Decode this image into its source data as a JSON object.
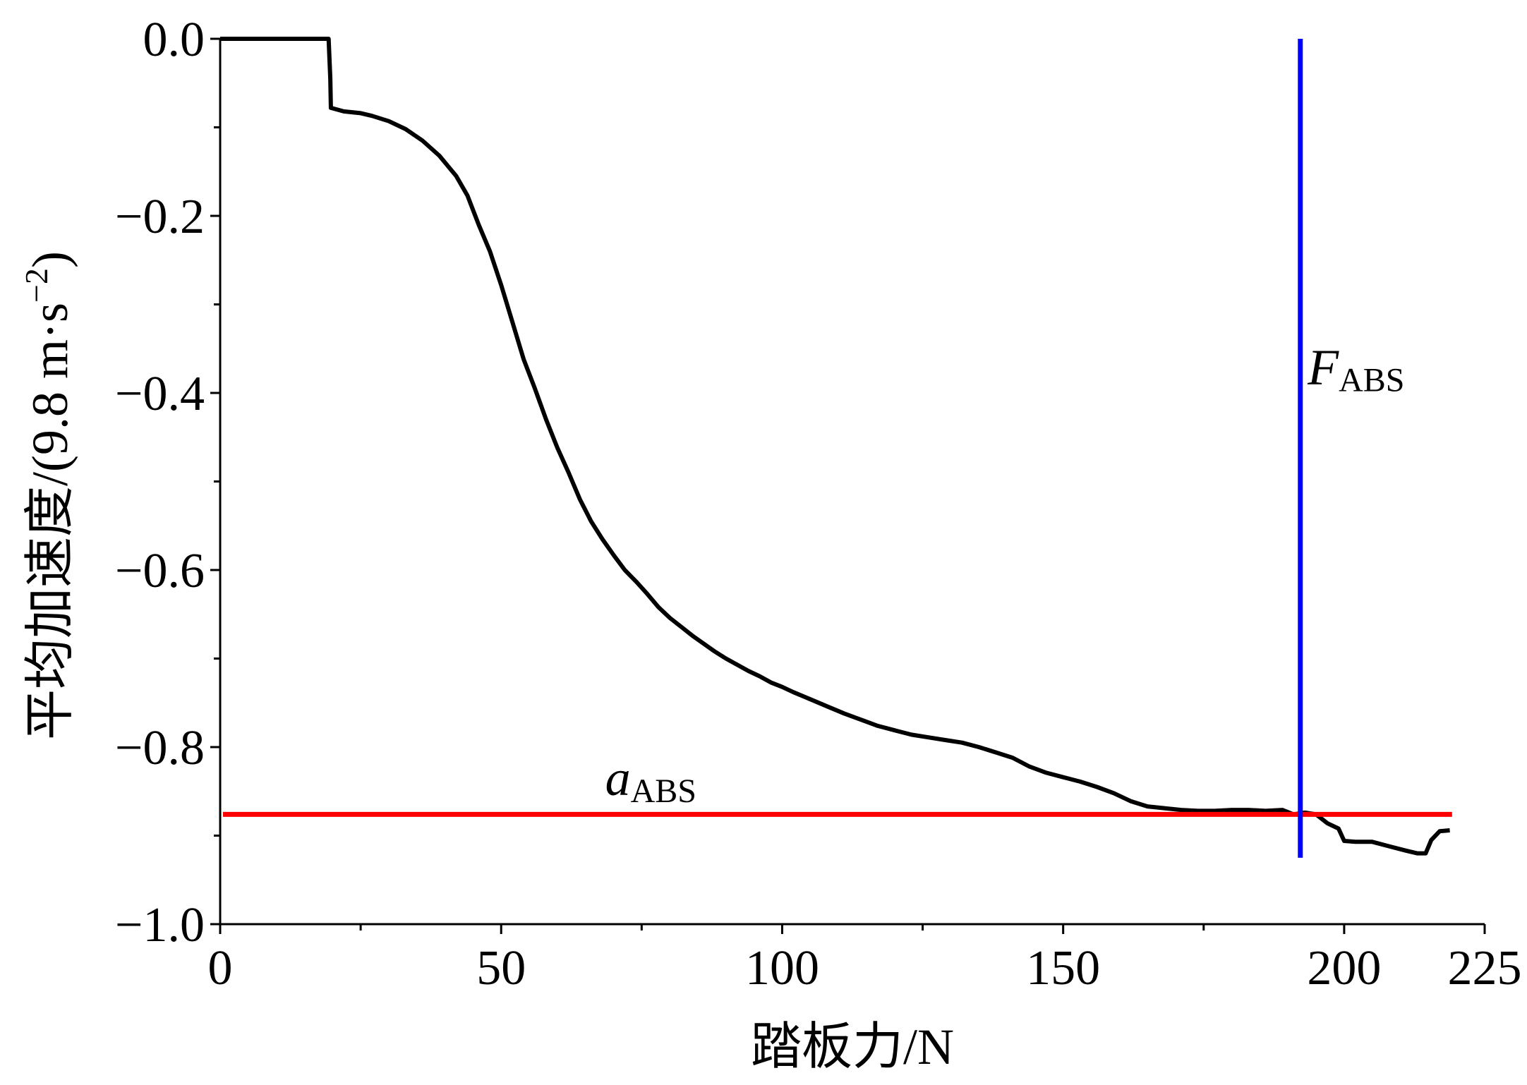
{
  "chart_data": {
    "type": "line",
    "title": "",
    "xlabel": "踏板力/N",
    "ylabel": "平均加速度/(9.8 m·s",
    "ylabel_sup": "−2",
    "ylabel_close": ")",
    "xlim": [
      0,
      225
    ],
    "ylim": [
      -1.0,
      0.0
    ],
    "x_ticks": [
      0,
      50,
      100,
      150,
      200,
      225
    ],
    "x_tick_labels": [
      "0",
      "50",
      "100",
      "150",
      "200",
      "225"
    ],
    "x_minor_ticks": [
      25,
      75,
      125,
      175
    ],
    "y_ticks": [
      0.0,
      -0.2,
      -0.4,
      -0.6,
      -0.8,
      -1.0
    ],
    "y_tick_labels": [
      "0.0",
      "−0.2",
      "−0.4",
      "−0.6",
      "−0.8",
      "−1.0"
    ],
    "y_minor_ticks": [
      -0.1,
      -0.3,
      -0.5,
      -0.7,
      -0.9
    ],
    "grid": false,
    "series": [
      {
        "color": "#000000",
        "points": [
          [
            0,
            0.0
          ],
          [
            19.3,
            0.0
          ],
          [
            19.6,
            -0.045
          ],
          [
            19.7,
            -0.078
          ],
          [
            22,
            -0.082
          ],
          [
            25,
            -0.084
          ],
          [
            27,
            -0.087
          ],
          [
            30,
            -0.093
          ],
          [
            33,
            -0.102
          ],
          [
            36,
            -0.115
          ],
          [
            39,
            -0.132
          ],
          [
            42,
            -0.155
          ],
          [
            44,
            -0.177
          ],
          [
            46,
            -0.21
          ],
          [
            48,
            -0.24
          ],
          [
            50,
            -0.278
          ],
          [
            52,
            -0.32
          ],
          [
            54,
            -0.362
          ],
          [
            56,
            -0.395
          ],
          [
            58,
            -0.43
          ],
          [
            60,
            -0.462
          ],
          [
            62,
            -0.49
          ],
          [
            64,
            -0.52
          ],
          [
            66,
            -0.545
          ],
          [
            68,
            -0.565
          ],
          [
            70,
            -0.583
          ],
          [
            72,
            -0.6
          ],
          [
            74,
            -0.613
          ],
          [
            76,
            -0.627
          ],
          [
            78,
            -0.642
          ],
          [
            80,
            -0.654
          ],
          [
            82,
            -0.664
          ],
          [
            84,
            -0.674
          ],
          [
            86,
            -0.683
          ],
          [
            88,
            -0.692
          ],
          [
            90,
            -0.7
          ],
          [
            92,
            -0.707
          ],
          [
            94,
            -0.714
          ],
          [
            96,
            -0.72
          ],
          [
            98,
            -0.727
          ],
          [
            100,
            -0.732
          ],
          [
            102,
            -0.738
          ],
          [
            105,
            -0.746
          ],
          [
            108,
            -0.754
          ],
          [
            111,
            -0.762
          ],
          [
            114,
            -0.769
          ],
          [
            117,
            -0.776
          ],
          [
            120,
            -0.781
          ],
          [
            123,
            -0.786
          ],
          [
            126,
            -0.789
          ],
          [
            129,
            -0.792
          ],
          [
            132,
            -0.795
          ],
          [
            135,
            -0.8
          ],
          [
            138,
            -0.806
          ],
          [
            141,
            -0.812
          ],
          [
            144,
            -0.822
          ],
          [
            147,
            -0.829
          ],
          [
            150,
            -0.834
          ],
          [
            153,
            -0.839
          ],
          [
            156,
            -0.845
          ],
          [
            159,
            -0.852
          ],
          [
            162,
            -0.861
          ],
          [
            165,
            -0.867
          ],
          [
            168,
            -0.869
          ],
          [
            171,
            -0.871
          ],
          [
            174,
            -0.872
          ],
          [
            177,
            -0.872
          ],
          [
            180,
            -0.871
          ],
          [
            183,
            -0.871
          ],
          [
            186,
            -0.872
          ],
          [
            189,
            -0.871
          ],
          [
            191,
            -0.876
          ],
          [
            193,
            -0.874
          ],
          [
            195,
            -0.876
          ],
          [
            197,
            -0.886
          ],
          [
            199,
            -0.892
          ],
          [
            200,
            -0.906
          ],
          [
            202,
            -0.907
          ],
          [
            205,
            -0.907
          ],
          [
            208,
            -0.912
          ],
          [
            211,
            -0.917
          ],
          [
            213,
            -0.92
          ],
          [
            214.5,
            -0.92
          ],
          [
            215.5,
            -0.905
          ],
          [
            217,
            -0.895
          ],
          [
            218.8,
            -0.894
          ]
        ]
      }
    ],
    "hline": {
      "y": -0.876,
      "color": "#ff0000",
      "x_start": 0.5,
      "x_end": 219.2
    },
    "vline": {
      "x": 192.2,
      "color": "#0000ff",
      "y_top": 0.0,
      "y_bottom": -0.925
    },
    "annotations": [
      {
        "main": "a",
        "sub": "ABS",
        "x": 68.5,
        "y": -0.854,
        "color": "#000000"
      },
      {
        "main": "F",
        "sub": "ABS",
        "x": 193.5,
        "y": -0.39,
        "color": "#000000"
      }
    ]
  }
}
